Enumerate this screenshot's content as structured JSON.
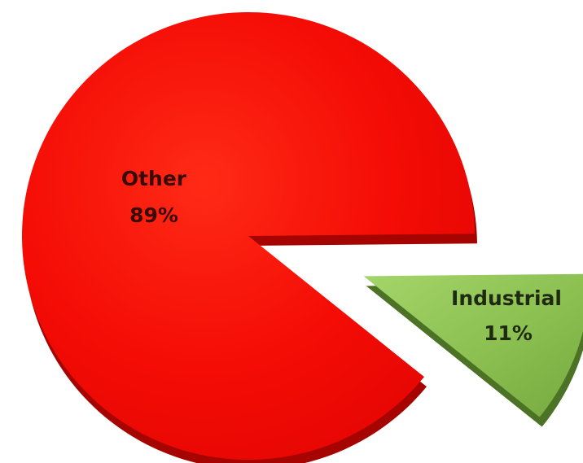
{
  "chart_data": {
    "type": "pie",
    "style": "3d-exploded",
    "categories": [
      "Other",
      "Industrial"
    ],
    "values": [
      89,
      11
    ],
    "labels": [
      "89%",
      "11%"
    ],
    "colors": {
      "Other": "#f20a05",
      "Industrial": "#8fc253"
    },
    "exploded": [
      "Industrial"
    ],
    "legend": "none",
    "title": ""
  }
}
